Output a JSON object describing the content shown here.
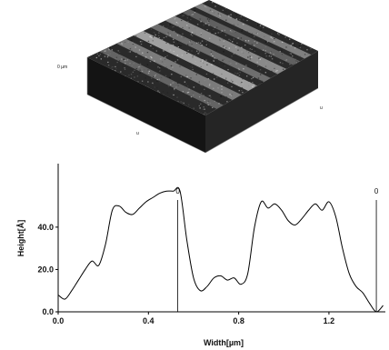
{
  "surface_image": {
    "icon": "afm-3d-surface",
    "axis_labels": {
      "z": "0 µm",
      "left": "u",
      "front": "u",
      "right": "u"
    }
  },
  "chart_data": {
    "type": "line",
    "xlabel": "Width[µm]",
    "ylabel": "Height[Å]",
    "xlim": [
      0.0,
      1.45
    ],
    "ylim": [
      0.0,
      70.0
    ],
    "xticks": [
      "0.0",
      "0.4",
      "0.8",
      "1.2"
    ],
    "yticks": [
      "0.0",
      "20.0",
      "40.0"
    ],
    "markers": [
      {
        "x": 0.53,
        "label": "0"
      },
      {
        "x": 1.41,
        "label": "0"
      }
    ],
    "series": [
      {
        "x": [
          0.0,
          0.03,
          0.06,
          0.09,
          0.12,
          0.15,
          0.18,
          0.21,
          0.24,
          0.27,
          0.3,
          0.33,
          0.36,
          0.39,
          0.42,
          0.45,
          0.48,
          0.51,
          0.54,
          0.57,
          0.6,
          0.63,
          0.66,
          0.69,
          0.72,
          0.75,
          0.78,
          0.81,
          0.84,
          0.87,
          0.9,
          0.93,
          0.96,
          0.99,
          1.02,
          1.05,
          1.08,
          1.11,
          1.14,
          1.17,
          1.2,
          1.23,
          1.26,
          1.29,
          1.32,
          1.35,
          1.38,
          1.41,
          1.44
        ],
        "values": [
          8,
          6,
          10,
          15,
          20,
          24,
          22,
          32,
          48,
          50,
          47,
          46,
          49,
          52,
          54,
          56,
          57,
          57,
          57,
          34,
          16,
          10,
          12,
          16,
          17,
          15,
          16,
          13,
          18,
          40,
          52,
          49,
          51,
          48,
          43,
          41,
          44,
          48,
          51,
          48,
          52,
          45,
          30,
          18,
          12,
          9,
          4,
          0,
          3
        ]
      }
    ]
  }
}
